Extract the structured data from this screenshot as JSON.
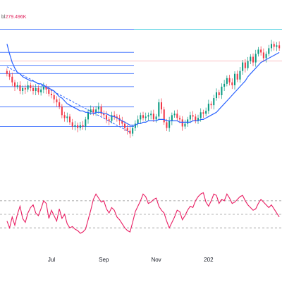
{
  "legend": {
    "row1_value": "",
    "row2_name": "bl",
    "row2_value": "279.496K"
  },
  "chart_data": {
    "type": "candlestick",
    "price_panel": {
      "ylim": [
        0.5,
        10.5
      ],
      "fib_levels": [
        9.93,
        8.31,
        7.4,
        6.82,
        5.9,
        4.48,
        3.1
      ],
      "fib_line_color": "#2962ff",
      "resistance_line": 7.7,
      "resistance_color": "#f23645",
      "trendline": {
        "from": [
          0,
          7.3
        ],
        "to": [
          47,
          2.7
        ],
        "style": "dashed",
        "color": "#2962ff"
      },
      "candle_up_color": "#089981",
      "candle_down_color": "#f23645",
      "closes": [
        6.8,
        6.6,
        6.2,
        5.9,
        6.0,
        5.6,
        5.8,
        5.7,
        6.0,
        5.8,
        5.6,
        5.8,
        5.5,
        5.7,
        5.9,
        5.7,
        5.4,
        5.3,
        5.0,
        4.8,
        4.5,
        3.9,
        3.7,
        3.8,
        3.4,
        3.1,
        3.2,
        3.0,
        3.2,
        3.1,
        3.6,
        4.1,
        4.3,
        4.1,
        4.3,
        4.5,
        4.0,
        3.9,
        3.6,
        3.5,
        3.9,
        3.8,
        3.7,
        3.5,
        3.3,
        3.0,
        2.8,
        2.6,
        3.0,
        3.3,
        3.6,
        3.9,
        3.7,
        3.8,
        3.9,
        4.0,
        3.6,
        3.8,
        4.8,
        4.3,
        3.4,
        3.0,
        3.5,
        3.9,
        4.0,
        3.7,
        3.6,
        3.1,
        3.3,
        3.6,
        3.9,
        3.8,
        3.5,
        3.7,
        4.1,
        4.0,
        4.2,
        4.7,
        4.6,
        5.1,
        5.5,
        5.3,
        5.9,
        6.1,
        6.5,
        6.2,
        6.0,
        6.8,
        6.4,
        7.0,
        7.6,
        7.2,
        7.7,
        8.0,
        7.6,
        8.2,
        8.5,
        8.3,
        7.9,
        8.2,
        8.6,
        8.9,
        8.7,
        8.8,
        8.6
      ],
      "ma": [
        8.9,
        8.2,
        7.6,
        7.2,
        6.9,
        6.8,
        6.6,
        6.5,
        6.4,
        6.3,
        6.3,
        6.2,
        6.1,
        6.1,
        6.0,
        5.9,
        5.8,
        5.7,
        5.6,
        5.4,
        5.2,
        5.1,
        4.9,
        4.7,
        4.6,
        4.5,
        4.4,
        4.3,
        4.2,
        4.2,
        4.1,
        4.1,
        4.0,
        4.0,
        4.1,
        4.1,
        4.1,
        4.0,
        4.0,
        3.9,
        3.8,
        3.8,
        3.7,
        3.6,
        3.5,
        3.4,
        3.3,
        3.2,
        3.2,
        3.2,
        3.3,
        3.3,
        3.4,
        3.4,
        3.5,
        3.5,
        3.5,
        3.5,
        3.6,
        3.6,
        3.6,
        3.5,
        3.5,
        3.5,
        3.5,
        3.5,
        3.4,
        3.4,
        3.4,
        3.4,
        3.4,
        3.5,
        3.5,
        3.5,
        3.6,
        3.6,
        3.7,
        3.8,
        3.9,
        4.0,
        4.1,
        4.3,
        4.5,
        4.7,
        4.9,
        5.1,
        5.3,
        5.5,
        5.7,
        5.9,
        6.1,
        6.3,
        6.6,
        6.8,
        7.0,
        7.2,
        7.4,
        7.6,
        7.7,
        7.8,
        7.9,
        8.0,
        8.1,
        8.2,
        8.3
      ],
      "ma_color": "#2962ff"
    },
    "oscillator_panel": {
      "ylim": [
        0,
        100
      ],
      "line_color": "#e91e63",
      "levels": [
        70,
        50,
        30
      ],
      "values": [
        40,
        30,
        46,
        34,
        50,
        62,
        44,
        38,
        52,
        60,
        64,
        52,
        48,
        58,
        70,
        66,
        44,
        56,
        48,
        40,
        58,
        44,
        50,
        36,
        30,
        32,
        28,
        26,
        22,
        24,
        28,
        42,
        56,
        72,
        80,
        74,
        68,
        70,
        58,
        52,
        60,
        56,
        46,
        42,
        36,
        30,
        26,
        24,
        38,
        54,
        62,
        70,
        80,
        76,
        66,
        68,
        72,
        74,
        62,
        56,
        52,
        40,
        30,
        38,
        46,
        56,
        54,
        42,
        48,
        56,
        62,
        60,
        70,
        76,
        80,
        82,
        68,
        62,
        70,
        80,
        78,
        66,
        72,
        70,
        80,
        74,
        66,
        68,
        72,
        76,
        78,
        70,
        64,
        60,
        56,
        58,
        66,
        72,
        68,
        64,
        60,
        64,
        58,
        52,
        46
      ]
    },
    "x_axis": {
      "tick_labels": [
        "Jul",
        "Sep",
        "Nov",
        "202"
      ],
      "tick_indices": [
        17,
        37,
        57,
        77
      ]
    },
    "grid": false
  }
}
